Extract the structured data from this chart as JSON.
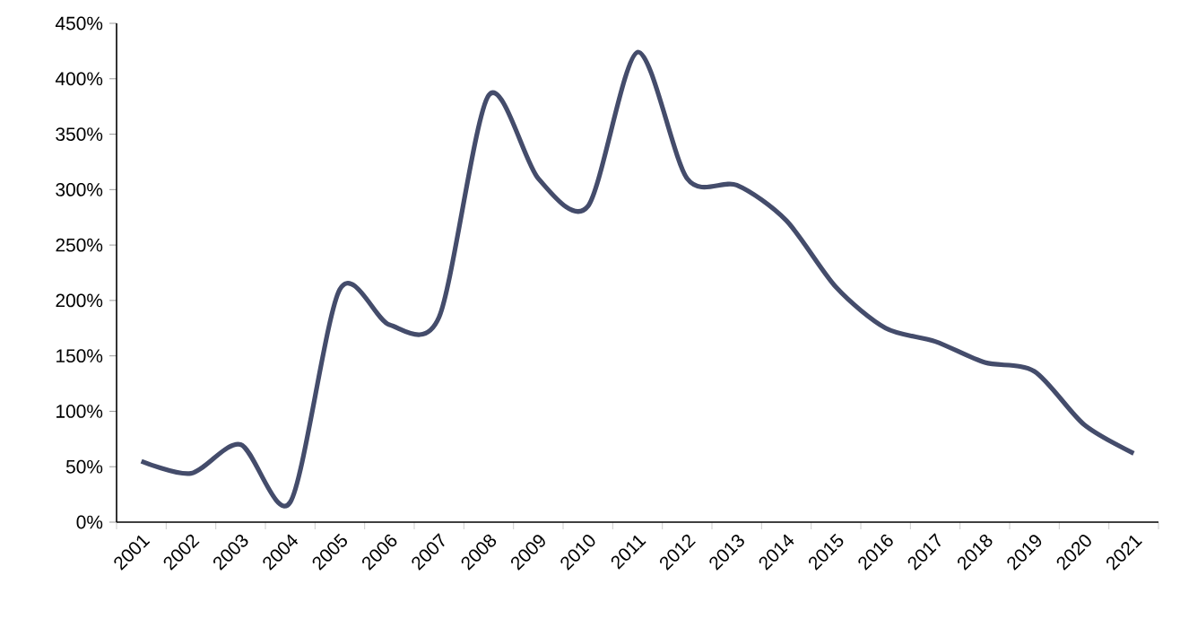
{
  "chart_data": {
    "type": "line",
    "categories": [
      "2001",
      "2002",
      "2003",
      "2004",
      "2005",
      "2006",
      "2007",
      "2008",
      "2009",
      "2010",
      "2011",
      "2012",
      "2013",
      "2014",
      "2015",
      "2016",
      "2017",
      "2018",
      "2019",
      "2020",
      "2021"
    ],
    "series": [
      {
        "color": "#444c6b",
        "values": [
          55,
          44,
          70,
          18,
          210,
          178,
          185,
          385,
          310,
          285,
          424,
          310,
          304,
          272,
          212,
          175,
          163,
          144,
          136,
          88,
          62
        ]
      }
    ],
    "ylim": [
      0,
      450
    ],
    "yticks": [
      {
        "value": 0,
        "label": "0%"
      },
      {
        "value": 50,
        "label": "50%"
      },
      {
        "value": 100,
        "label": "100%"
      },
      {
        "value": 150,
        "label": "150%"
      },
      {
        "value": 200,
        "label": "200%"
      },
      {
        "value": 250,
        "label": "250%"
      },
      {
        "value": 300,
        "label": "300%"
      },
      {
        "value": 350,
        "label": "350%"
      },
      {
        "value": 400,
        "label": "400%"
      },
      {
        "value": 450,
        "label": "450%"
      }
    ],
    "marker": "none",
    "line_style": "solid"
  }
}
